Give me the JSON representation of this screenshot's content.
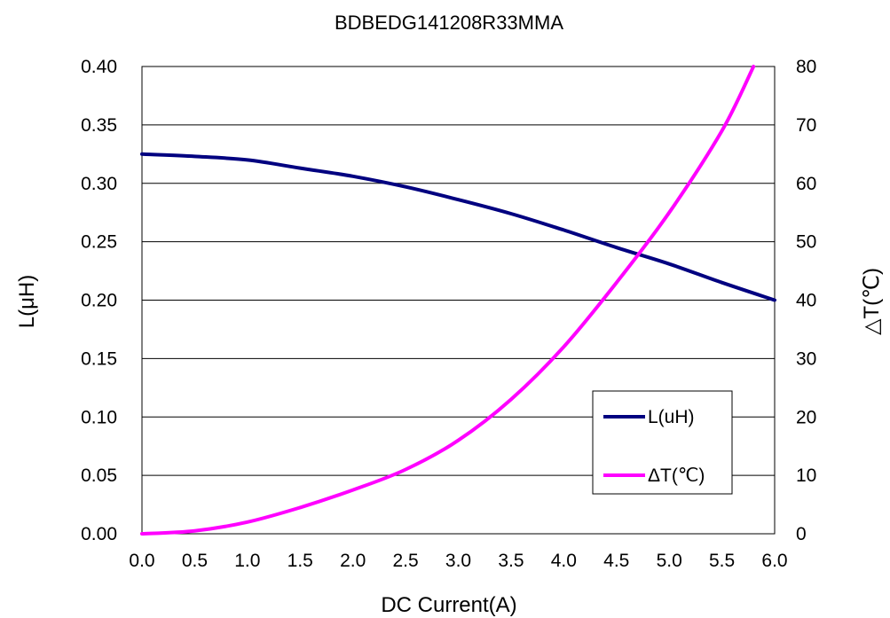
{
  "chart_data": {
    "type": "line",
    "title": "BDBEDG141208R33MMA",
    "xlabel": "DC Current(A)",
    "ylabel": "L(μH)",
    "y2label": "△T(℃)",
    "xlim": [
      0,
      6
    ],
    "ylim": [
      0,
      0.4
    ],
    "y2lim": [
      0,
      80
    ],
    "x_ticks": [
      "0.0",
      "0.5",
      "1.0",
      "1.5",
      "2.0",
      "2.5",
      "3.0",
      "3.5",
      "4.0",
      "4.5",
      "5.0",
      "5.5",
      "6.0"
    ],
    "y_ticks": [
      "0.00",
      "0.05",
      "0.10",
      "0.15",
      "0.20",
      "0.25",
      "0.30",
      "0.35",
      "0.40"
    ],
    "y2_ticks": [
      "0",
      "10",
      "20",
      "30",
      "40",
      "50",
      "60",
      "70",
      "80"
    ],
    "grid": "horizontal",
    "legend_position": "bottom-right",
    "series": [
      {
        "name": "L(uH)",
        "axis": "left",
        "color": "#000080",
        "x": [
          0.0,
          0.5,
          1.0,
          1.5,
          2.0,
          2.5,
          3.0,
          3.5,
          4.0,
          4.5,
          5.0,
          5.5,
          6.0
        ],
        "values": [
          0.325,
          0.323,
          0.32,
          0.313,
          0.306,
          0.297,
          0.286,
          0.274,
          0.26,
          0.245,
          0.231,
          0.215,
          0.2
        ]
      },
      {
        "name": "ΔT(℃)",
        "axis": "right",
        "color": "#ff00ff",
        "x": [
          0.0,
          0.5,
          1.0,
          1.5,
          2.0,
          2.5,
          3.0,
          3.5,
          4.0,
          4.5,
          5.0,
          5.5,
          5.8
        ],
        "values": [
          0,
          0.5,
          2,
          4.5,
          7.5,
          11,
          16,
          23,
          32,
          43,
          55,
          69,
          80
        ]
      }
    ]
  }
}
